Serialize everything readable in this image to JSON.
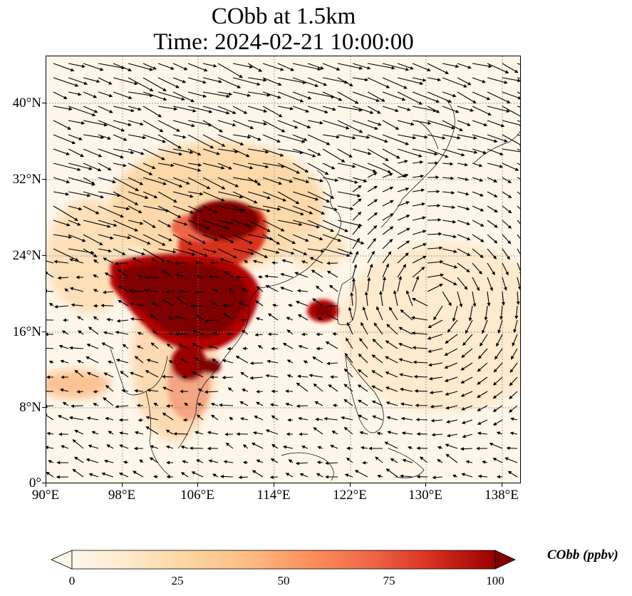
{
  "map": {
    "title_line1": "CObb at 1.5km",
    "title_line2": "Time: 2024-02-21 10:00:00",
    "lat_labels": [
      "40°N",
      "32°N",
      "24°N",
      "16°N",
      "8°N",
      "0°"
    ],
    "lon_labels": [
      "90°E",
      "98°E",
      "106°E",
      "114°E",
      "122°E",
      "130°E",
      "138°E"
    ],
    "extent": {
      "lon_min": 90,
      "lon_max": 140,
      "lat_min": 0,
      "lat_max": 45
    },
    "gridlines": true,
    "colormap": "OrRd",
    "colors": {
      "low": "#fff7ec",
      "mid": "#fc8d59",
      "high": "#7f0000",
      "coast": "#000000",
      "wind": "#000000"
    }
  },
  "colorbar": {
    "title": "CObb (ppbv)",
    "tick_labels": [
      "0",
      "25",
      "50",
      "75",
      "100"
    ],
    "ticks": [
      0,
      25,
      50,
      75,
      100
    ],
    "extend": "both"
  }
}
